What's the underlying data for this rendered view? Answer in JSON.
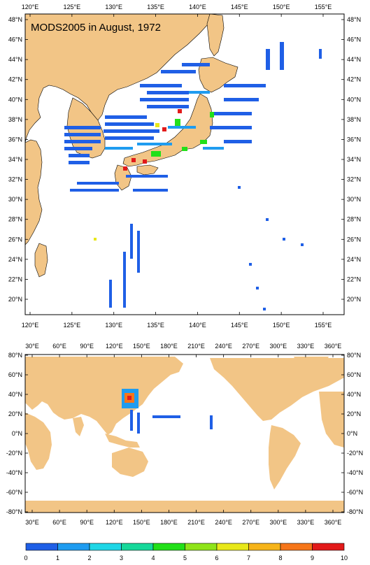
{
  "title": "MODS2005 in August, 1972",
  "colors": {
    "land": "#f2c586",
    "ocean": "#ffffff",
    "frame": "#000000",
    "scale": [
      "#1f5fe6",
      "#1f9cf0",
      "#1fd6e6",
      "#16d89a",
      "#22e01a",
      "#8fe41a",
      "#e8e81a",
      "#f6b41a",
      "#f6761a",
      "#e21a1a"
    ]
  },
  "top_map": {
    "lon_labels": [
      "120°E",
      "125°E",
      "130°E",
      "135°E",
      "140°E",
      "145°E",
      "150°E",
      "155°E"
    ],
    "lat_labels": [
      "48°N",
      "46°N",
      "44°N",
      "42°N",
      "40°N",
      "38°N",
      "36°N",
      "34°N",
      "32°N",
      "30°N",
      "28°N",
      "26°N",
      "24°N",
      "22°N",
      "20°N"
    ]
  },
  "bottom_map": {
    "lon_labels": [
      "30°E",
      "60°E",
      "90°E",
      "120°E",
      "150°E",
      "180°E",
      "210°E",
      "240°E",
      "270°E",
      "300°E",
      "330°E",
      "360°E"
    ],
    "lat_labels": [
      "80°N",
      "60°N",
      "40°N",
      "20°N",
      "0°N",
      "-20°N",
      "-40°N",
      "-60°N",
      "-80°N"
    ]
  },
  "colorbar": {
    "labels": [
      "0",
      "1",
      "2",
      "3",
      "4",
      "5",
      "6",
      "7",
      "8",
      "9",
      "10"
    ]
  }
}
